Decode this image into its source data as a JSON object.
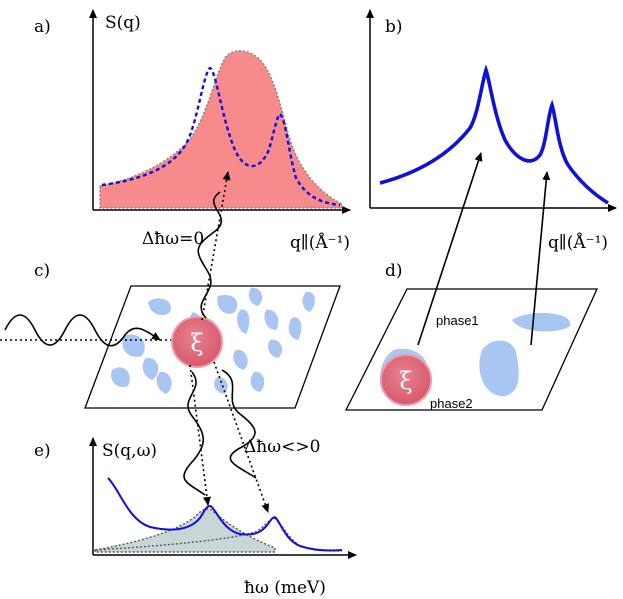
{
  "colors": {
    "blue_curve": "#1010d8",
    "pink_fill": "#f78a8a",
    "pink_circle": "#dc6676",
    "domain_blue": "#a9c6f2",
    "gray_fill": "#c9d6d6"
  },
  "panel_a": {
    "tag": "a)",
    "ylabel": "S(q)",
    "xlabel": "q∥(Å⁻¹)"
  },
  "panel_b": {
    "tag": "b)",
    "xlabel": "q∥(Å⁻¹)"
  },
  "panel_c": {
    "tag": "c)",
    "symbol": "ξ",
    "elastic_label": "Δħω=0",
    "inelastic_label": "Δħω<>0"
  },
  "panel_d": {
    "tag": "d)",
    "symbol": "ξ",
    "phase1": "phase1",
    "phase2": "phase2"
  },
  "panel_e": {
    "tag": "e)",
    "ylabel": "S(q,ω)",
    "xlabel": "ħω (meV)"
  }
}
